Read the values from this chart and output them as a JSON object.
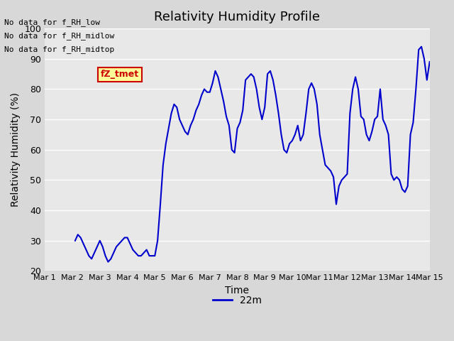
{
  "title": "Relativity Humidity Profile",
  "xlabel": "Time",
  "ylabel": "Relativity Humidity (%)",
  "ylim": [
    20,
    100
  ],
  "xlim": [
    0,
    14
  ],
  "xtick_labels": [
    "Mar 1",
    "Mar 2",
    "Mar 3",
    "Mar 4",
    "Mar 5",
    "Mar 6",
    "Mar 7",
    "Mar 8",
    "Mar 9",
    "Mar 10",
    "Mar 11",
    "Mar 12",
    "Mar 13",
    "Mar 14",
    "Mar 15"
  ],
  "xtick_positions": [
    0,
    1,
    2,
    3,
    4,
    5,
    6,
    7,
    8,
    9,
    10,
    11,
    12,
    13,
    14
  ],
  "ytick_labels": [
    "20",
    "30",
    "40",
    "50",
    "60",
    "70",
    "80",
    "90",
    "100"
  ],
  "ytick_positions": [
    20,
    30,
    40,
    50,
    60,
    70,
    80,
    90,
    100
  ],
  "line_color": "#0000cc",
  "line_label": "22m",
  "no_data_texts": [
    "No data for f_RH_low",
    "No data for f_RH_midlow",
    "No data for f_RH_midtop"
  ],
  "legend_box_color": "#cc0000",
  "legend_box_bg": "#ffff99",
  "legend_text": "fZ_tmet",
  "background_color": "#e8e8e8",
  "plot_bg_color": "#f0f0f0",
  "grid_color": "#ffffff",
  "x": [
    1.0,
    1.1,
    1.2,
    1.3,
    1.4,
    1.5,
    1.6,
    1.7,
    1.8,
    1.9,
    2.0,
    2.1,
    2.2,
    2.3,
    2.4,
    2.5,
    2.6,
    2.7,
    2.8,
    2.9,
    3.0,
    3.1,
    3.2,
    3.3,
    3.4,
    3.5,
    3.6,
    3.7,
    3.8,
    3.9,
    4.0,
    4.1,
    4.2,
    4.3,
    4.4,
    4.5,
    4.6,
    4.7,
    4.8,
    4.9,
    5.0,
    5.1,
    5.2,
    5.3,
    5.4,
    5.5,
    5.6,
    5.7,
    5.8,
    5.9,
    6.0,
    6.1,
    6.2,
    6.3,
    6.4,
    6.5,
    6.6,
    6.7,
    6.8,
    6.9,
    7.0,
    7.1,
    7.2,
    7.3,
    7.4,
    7.5,
    7.6,
    7.7,
    7.8,
    7.9,
    8.0,
    8.1,
    8.2,
    8.3,
    8.4,
    8.5,
    8.6,
    8.7,
    8.8,
    8.9,
    9.0,
    9.1,
    9.2,
    9.3,
    9.4,
    9.5,
    9.6,
    9.7,
    9.8,
    9.9,
    10.0,
    10.1,
    10.2,
    10.3,
    10.4,
    10.5,
    10.6,
    10.7,
    10.8,
    10.9,
    11.0,
    11.1,
    11.2,
    11.3,
    11.4,
    11.5,
    11.6,
    11.7,
    11.8,
    11.9,
    12.0,
    12.1,
    12.2,
    12.3,
    12.4,
    12.5,
    12.6,
    12.7,
    12.8,
    12.9,
    13.0,
    13.1,
    13.2,
    13.3,
    13.4,
    13.5,
    13.6,
    13.7,
    13.8,
    13.9,
    14.0
  ],
  "y": [
    null,
    30,
    32,
    31,
    29,
    27,
    25,
    24,
    26,
    28,
    30,
    28,
    25,
    23,
    24,
    26,
    28,
    29,
    30,
    31,
    31,
    29,
    27,
    26,
    25,
    25,
    26,
    27,
    25,
    25,
    25,
    30,
    42,
    55,
    62,
    67,
    72,
    75,
    74,
    70,
    68,
    66,
    65,
    68,
    70,
    73,
    75,
    78,
    80,
    79,
    79,
    82,
    86,
    84,
    80,
    76,
    71,
    68,
    60,
    59,
    67,
    69,
    73,
    83,
    84,
    85,
    84,
    80,
    74,
    70,
    74,
    85,
    86,
    83,
    78,
    72,
    65,
    60,
    59,
    62,
    63,
    65,
    68,
    63,
    65,
    72,
    80,
    82,
    80,
    75,
    65,
    60,
    55,
    54,
    53,
    51,
    42,
    48,
    50,
    51,
    52,
    72,
    80,
    84,
    80,
    71,
    70,
    65,
    63,
    66,
    70,
    71,
    80,
    70,
    68,
    65,
    52,
    50,
    51,
    50,
    47,
    46,
    48,
    65,
    69,
    80,
    93,
    94,
    90,
    83,
    89
  ]
}
